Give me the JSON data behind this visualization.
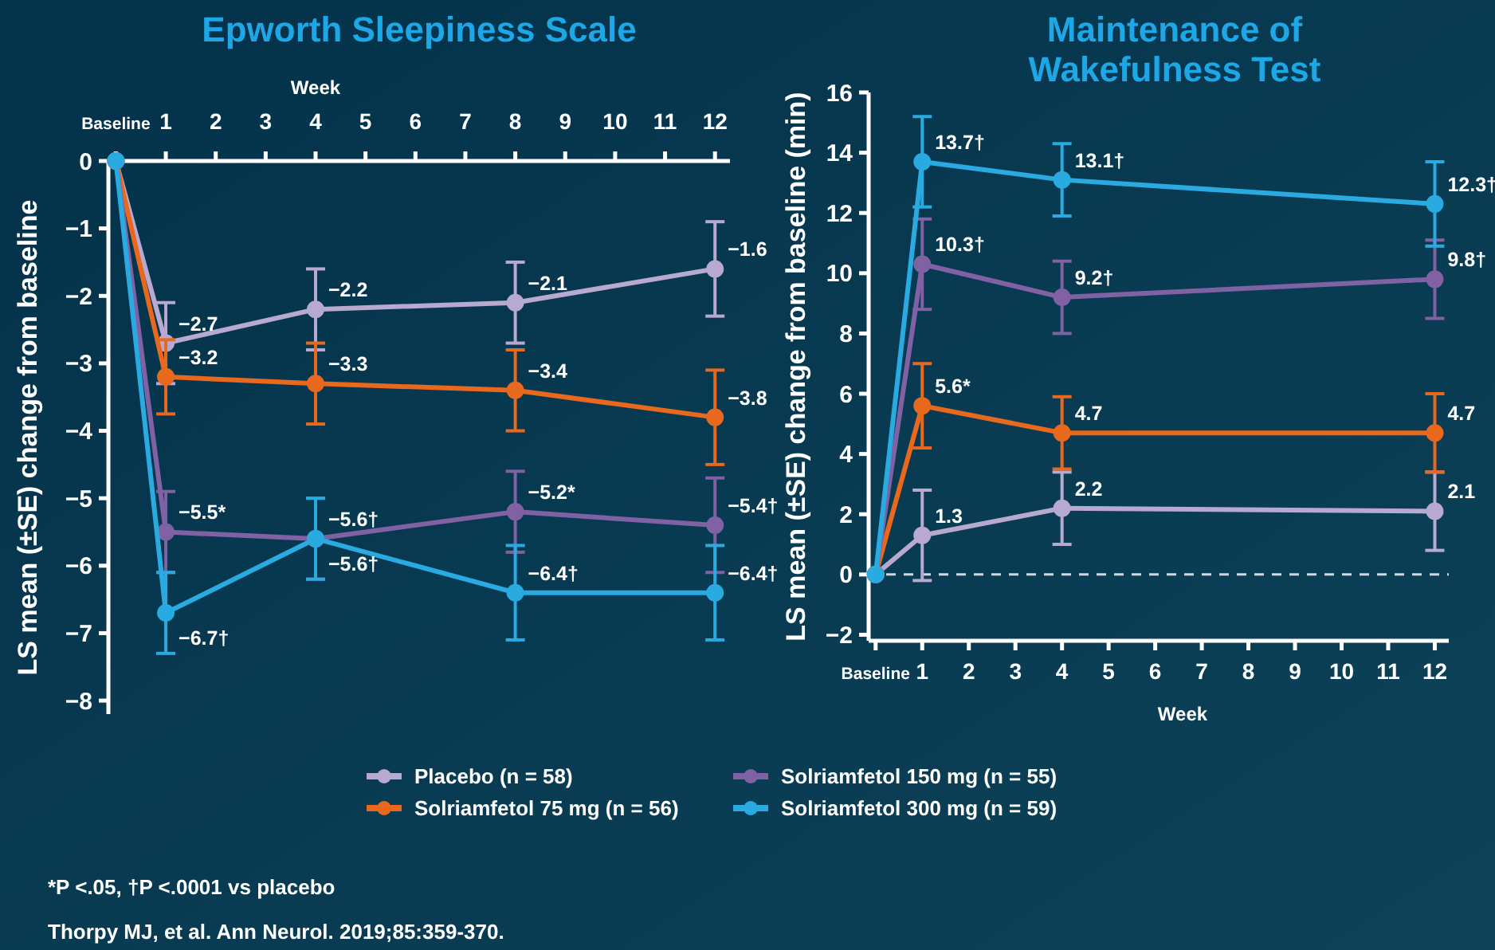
{
  "chart_data": [
    {
      "type": "line",
      "title": "Epworth Sleepiness Scale",
      "xlabel": "Week",
      "ylabel": "LS mean (±SE) change from baseline",
      "xlim": [
        -0.15,
        12.3
      ],
      "xticks": [
        {
          "value": 0,
          "label": "Baseline"
        },
        1,
        2,
        3,
        4,
        5,
        6,
        7,
        8,
        9,
        10,
        11,
        12
      ],
      "ylim": [
        -8.2,
        0
      ],
      "yticks": [
        0,
        {
          "value": -1,
          "label": "−1"
        },
        {
          "value": -2,
          "label": "−2"
        },
        {
          "value": -3,
          "label": "−3"
        },
        {
          "value": -4,
          "label": "−4"
        },
        {
          "value": -5,
          "label": "−5"
        },
        {
          "value": -6,
          "label": "−6"
        },
        {
          "value": -7,
          "label": "−7"
        },
        {
          "value": -8,
          "label": "−8"
        }
      ],
      "marker": "circle",
      "legend": "bottom",
      "x": [
        0,
        1,
        4,
        8,
        12
      ],
      "series": [
        {
          "name": "Placebo (n = 58)",
          "color": "#b8a9d0",
          "values": [
            0,
            -2.7,
            -2.2,
            -2.1,
            -1.6
          ],
          "errors": [
            null,
            0.6,
            0.6,
            0.6,
            0.7
          ],
          "value_labels": [
            null,
            "−2.7",
            "−2.2",
            "−2.1",
            "−1.6"
          ]
        },
        {
          "name": "Solriamfetol 75 mg (n = 56)",
          "color": "#e8681e",
          "values": [
            0,
            -3.2,
            -3.3,
            -3.4,
            -3.8
          ],
          "errors": [
            null,
            0.55,
            0.6,
            0.6,
            0.7
          ],
          "value_labels": [
            null,
            "−3.2",
            "−3.3",
            "−3.4",
            "−3.8"
          ]
        },
        {
          "name": "Solriamfetol 150 mg (n = 55)",
          "color": "#8061a3",
          "values": [
            0,
            -5.5,
            -5.6,
            -5.2,
            -5.4
          ],
          "errors": [
            null,
            0.6,
            0.6,
            0.6,
            0.7
          ],
          "value_labels": [
            null,
            "−5.5*",
            "−5.6†",
            "−5.2*",
            "−5.4†"
          ]
        },
        {
          "name": "Solriamfetol 300 mg (n = 59)",
          "color": "#29abe2",
          "values": [
            0,
            -6.7,
            -5.6,
            -6.4,
            -6.4
          ],
          "errors": [
            null,
            0.6,
            0.6,
            0.7,
            0.7
          ],
          "value_labels": [
            null,
            "−6.7†",
            "−5.6†",
            "−6.4†",
            "−6.4†"
          ]
        }
      ],
      "annotations": [
        "*P <.05, †P <.0001 vs placebo",
        "Thorpy MJ, et al. Ann Neurol. 2019;85:359-370."
      ]
    },
    {
      "type": "line",
      "title": "Maintenance of Wakefulness Test",
      "xlabel": "Week",
      "ylabel": "LS mean (±SE) change from baseline  (min)",
      "xlim": [
        -0.15,
        12.3
      ],
      "xticks": [
        {
          "value": 0,
          "label": "Baseline"
        },
        1,
        2,
        3,
        4,
        5,
        6,
        7,
        8,
        9,
        10,
        11,
        12
      ],
      "ylim": [
        -2.2,
        16
      ],
      "yticks": [
        {
          "value": -2,
          "label": "−2"
        },
        0,
        2,
        4,
        6,
        8,
        10,
        12,
        14,
        16
      ],
      "marker": "circle",
      "x": [
        0,
        1,
        4,
        12
      ],
      "ref_lines": [
        {
          "axis": "y",
          "value": 0,
          "color": "#d0d8e0",
          "line_style": "dashed"
        }
      ],
      "series": [
        {
          "color": "#b8a9d0",
          "values": [
            0,
            1.3,
            2.2,
            2.1
          ],
          "errors": [
            null,
            1.5,
            1.2,
            1.3
          ],
          "value_labels": [
            null,
            "1.3",
            "2.2",
            "2.1"
          ]
        },
        {
          "color": "#e8681e",
          "values": [
            0,
            5.6,
            4.7,
            4.7
          ],
          "errors": [
            null,
            1.4,
            1.2,
            1.3
          ],
          "value_labels": [
            null,
            "5.6*",
            "4.7",
            "4.7"
          ]
        },
        {
          "color": "#8061a3",
          "values": [
            0,
            10.3,
            9.2,
            9.8
          ],
          "errors": [
            null,
            1.5,
            1.2,
            1.3
          ],
          "value_labels": [
            null,
            "10.3†",
            "9.2†",
            "9.8†"
          ]
        },
        {
          "color": "#29abe2",
          "values": [
            0,
            13.7,
            13.1,
            12.3
          ],
          "errors": [
            null,
            1.5,
            1.2,
            1.4
          ],
          "value_labels": [
            null,
            "13.7†",
            "13.1†",
            "12.3†"
          ]
        }
      ]
    }
  ]
}
